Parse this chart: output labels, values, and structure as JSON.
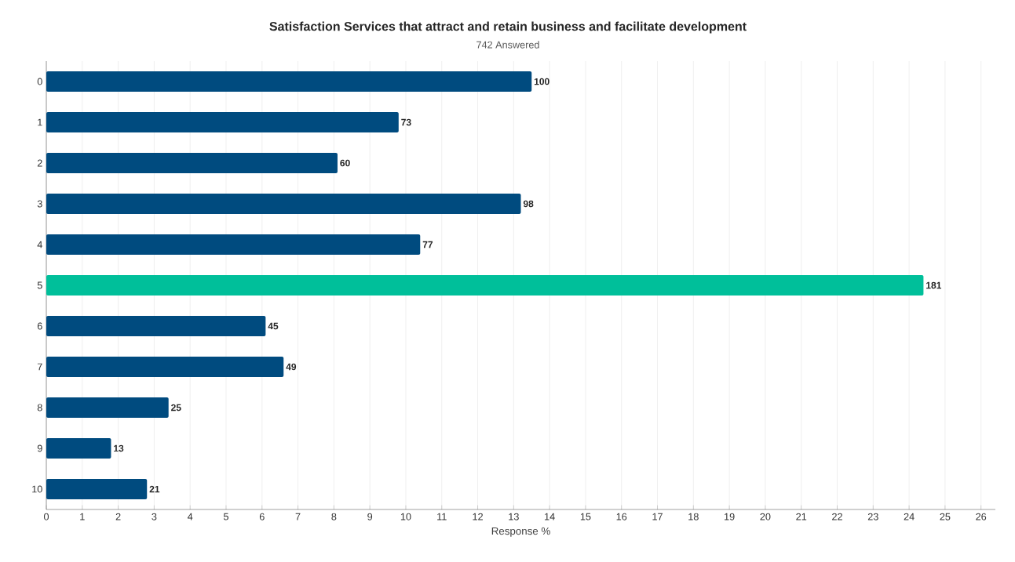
{
  "chart_data": {
    "type": "bar",
    "orientation": "horizontal",
    "title": "Satisfaction Services that attract and retain business and facilitate development",
    "subtitle": "742 Answered",
    "xlabel": "Response %",
    "categories": [
      "0",
      "1",
      "2",
      "3",
      "4",
      "5",
      "6",
      "7",
      "8",
      "9",
      "10"
    ],
    "values": [
      13.5,
      9.8,
      8.1,
      13.2,
      10.4,
      24.4,
      6.1,
      6.6,
      3.4,
      1.8,
      2.8
    ],
    "annotations": [
      {
        "text": "100",
        "x": 13.5,
        "y": "0"
      },
      {
        "text": "73",
        "x": 9.8,
        "y": "1"
      },
      {
        "text": "60",
        "x": 8.1,
        "y": "2"
      },
      {
        "text": "98",
        "x": 13.2,
        "y": "3"
      },
      {
        "text": "77",
        "x": 10.4,
        "y": "4"
      },
      {
        "text": "181",
        "x": 24.4,
        "y": "5"
      },
      {
        "text": "45",
        "x": 6.1,
        "y": "6"
      },
      {
        "text": "49",
        "x": 6.6,
        "y": "7"
      },
      {
        "text": "25",
        "x": 3.4,
        "y": "8"
      },
      {
        "text": "13",
        "x": 1.8,
        "y": "9"
      },
      {
        "text": "21",
        "x": 2.8,
        "y": "10"
      }
    ],
    "colors": [
      "#004b7f",
      "#004b7f",
      "#004b7f",
      "#004b7f",
      "#004b7f",
      "#00bf9a",
      "#004b7f",
      "#004b7f",
      "#004b7f",
      "#004b7f",
      "#004b7f"
    ],
    "xlim": [
      0,
      26.4
    ],
    "xticks": [
      0,
      1,
      2,
      3,
      4,
      5,
      6,
      7,
      8,
      9,
      10,
      11,
      12,
      13,
      14,
      15,
      16,
      17,
      18,
      19,
      20,
      21,
      22,
      23,
      24,
      25,
      26
    ],
    "grid": "x"
  }
}
